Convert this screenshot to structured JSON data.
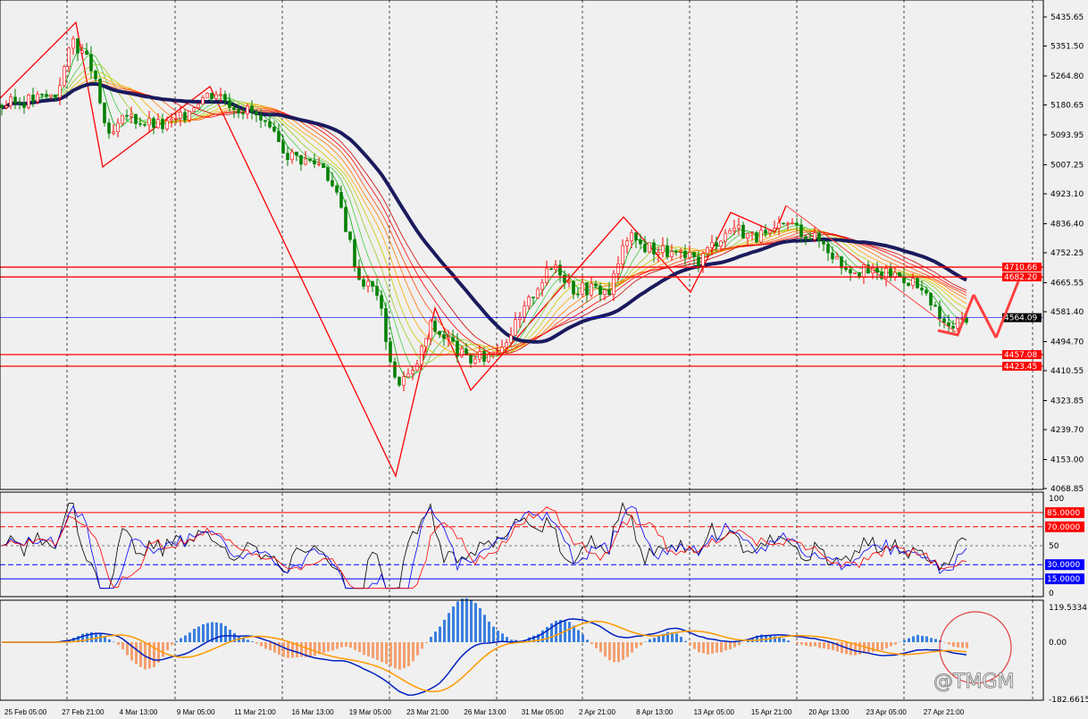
{
  "chart_data": {
    "type": "candlestick",
    "price_axis": {
      "ticks": [
        "5435.65",
        "5351.50",
        "5264.80",
        "5180.65",
        "5093.95",
        "5007.25",
        "4923.10",
        "4836.40",
        "4752.25",
        "4665.55",
        "4581.40",
        "4494.70",
        "4410.55",
        "4323.85",
        "4239.70",
        "4153.00",
        "4068.85"
      ],
      "range": [
        4068.85,
        5435.65
      ]
    },
    "time_labels": [
      "25 Feb 05:00",
      "27 Feb 21:00",
      "4 Mar 13:00",
      "9 Mar 05:00",
      "11 Mar 21:00",
      "16 Mar 13:00",
      "19 Mar 05:00",
      "23 Mar 21:00",
      "26 Mar 13:00",
      "31 Mar 05:00",
      "2 Apr 21:00",
      "8 Apr 13:00",
      "13 Apr 05:00",
      "15 Apr 21:00",
      "20 Apr 13:00",
      "23 Apr 05:00",
      "27 Apr 21:00"
    ],
    "closes": [
      5180,
      5190,
      5200,
      5210,
      5370,
      5290,
      5080,
      5150,
      5130,
      5120,
      5140,
      5200,
      5220,
      5180,
      5160,
      5100,
      5040,
      5020,
      5010,
      4880,
      4680,
      4640,
      4380,
      4400,
      4540,
      4500,
      4440,
      4450,
      4490,
      4560,
      4660,
      4720,
      4650,
      4650,
      4640,
      4800,
      4770,
      4760,
      4740,
      4730,
      4790,
      4830,
      4800,
      4800,
      4840,
      4810,
      4780,
      4720,
      4700,
      4690,
      4690,
      4670,
      4600,
      4530,
      4570
    ],
    "zigzag": [
      [
        0,
        5200
      ],
      [
        4.25,
        5420
      ],
      [
        5.75,
        5001
      ],
      [
        11.75,
        5234
      ],
      [
        22.15,
        4105
      ],
      [
        24.35,
        4592
      ],
      [
        26.35,
        4354
      ],
      [
        34.9,
        4856
      ],
      [
        38.65,
        4638
      ],
      [
        40.9,
        4869
      ],
      [
        43.4,
        4812
      ],
      [
        44,
        4889
      ]
    ],
    "levels": [
      {
        "label": "4710.66",
        "price": 4710.66,
        "color": "#ff0000"
      },
      {
        "label": "4682.20",
        "price": 4682.2,
        "color": "#ff0000"
      },
      {
        "label": "4564.09",
        "price": 4564.09,
        "color": "#0000ff",
        "current": true
      },
      {
        "label": "4457.08",
        "price": 4457.08,
        "color": "#ff0000"
      },
      {
        "label": "4423.45",
        "price": 4423.45,
        "color": "#ff0000"
      }
    ],
    "oscillator": {
      "ticks": [
        "100",
        "50",
        "0"
      ],
      "levels": [
        {
          "label": "85.0000",
          "value": 85,
          "color": "#ff0000"
        },
        {
          "label": "70.0000",
          "value": 70,
          "color": "#ff0000"
        },
        {
          "label": "30.0000",
          "value": 30,
          "color": "#0000ff"
        },
        {
          "label": "15.0000",
          "value": 15,
          "color": "#0000ff"
        }
      ]
    },
    "macd": {
      "ticks": [
        "119.5334",
        "0.00",
        "-182.6615"
      ],
      "range": [
        -182.6615,
        119.5334
      ]
    },
    "colors": {
      "up": "#ff0000",
      "down": "#008000",
      "ma_slow": "#1a1a5e",
      "annotation": "#ff4040"
    }
  },
  "watermark": "@TMGM"
}
